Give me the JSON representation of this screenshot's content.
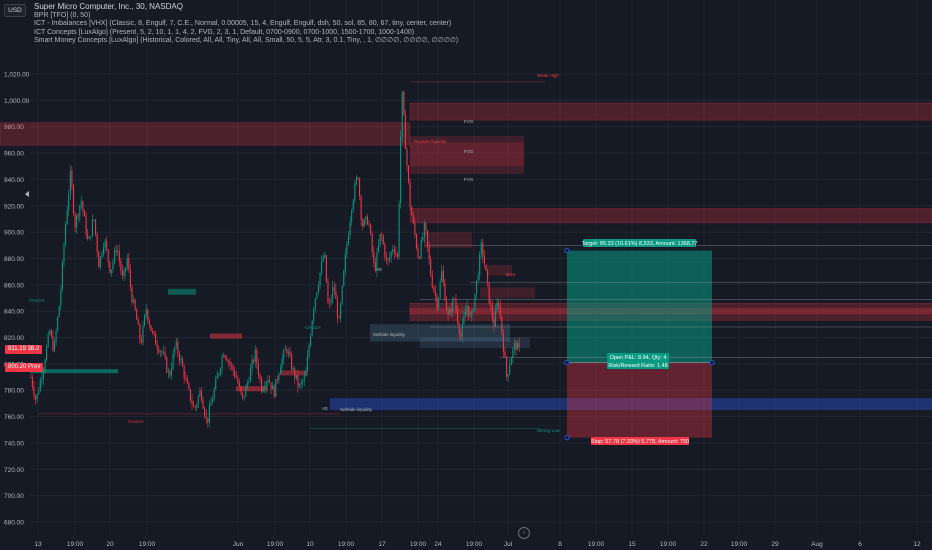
{
  "legend": {
    "title": "Super Micro Computer, Inc., 30, NASDAQ",
    "lines": [
      "BPR [TFO] (0, 50)",
      "ICT - Imbalances [VHX] (Classic, 8, Engulf, 7, C.E., Normal, 0.00005, 15, 4, Engulf, Engulf, dsh, 50, sol, 85, 80, 67, tiny, center, center)",
      "ICT Concepts [LuxAlgo] (Present, 5, 2, 10, 1, 1, 4, 2, FVG, 2, 3, 1, Default, 0700-0900, 0700-1000, 1500-1700, 1000-1400)",
      "Smart Money Concepts [LuxAlgo] (Historical, Colored, All, All, Tiny, All, All, Small, 50, 5, 5, Atr, 3, 0.1, Tiny, , 1, ∅∅∅∅, ∅∅∅∅, ∅∅∅∅)"
    ]
  },
  "currency": "USD",
  "left_price_tags": [
    {
      "text": "811.19",
      "sub": "38.2",
      "price": 808,
      "color": "#f23645"
    },
    {
      "text": "800.20",
      "sub": "Prev",
      "price": 796,
      "color": "#f23645"
    }
  ],
  "positions": {
    "target_label": "Target: 85.33 (10.61%) 8,533, Amount: 1368.77",
    "open_label": "Open P&L: 8.94, Qty: 4",
    "ratio_label": "Risk/Reward Ratio: 1.48",
    "stop_label": "Stop: 57.78 (7.33%) 5,778, Amount: 750"
  },
  "annotations": {
    "choch_1": "CHoCH",
    "choch_2": "CHoCH",
    "choch_3": "CHoCH",
    "sellside_1": "Sellside liquidity",
    "sellside_2": "Sellside liquidity",
    "buyside": "Buyside liquidity",
    "fvg": "FVG",
    "ve": "VE",
    "bos": "BOS",
    "weak_high": "Weak High",
    "strong_low": "Strong Low"
  },
  "chart_data": {
    "type": "candlestick",
    "ylim": [
      670,
      1050
    ],
    "y_ticks": [
      680,
      700,
      720,
      740,
      760,
      780,
      800,
      820,
      840,
      860,
      880,
      900,
      920,
      940,
      960,
      980,
      1000,
      1020
    ],
    "y_tick_labels": [
      "680.00",
      "700.00",
      "720.00",
      "740.00",
      "760.00",
      "780.00",
      "800.00",
      "820.00",
      "840.00",
      "860.00",
      "880.00",
      "900.00",
      "920.00",
      "940.00",
      "960.00",
      "980.00",
      "1,000.00",
      "1,020.00"
    ],
    "x_tick_labels": [
      "13",
      "19:00",
      "20",
      "19:00",
      "Jun",
      "19:00",
      "10",
      "19:00",
      "17",
      "19:00",
      "24",
      "19:00",
      "Jul",
      "8",
      "19:00",
      "15",
      "19:00",
      "22",
      "19:00",
      "29",
      "Aug",
      "6",
      "12"
    ],
    "path_points": [
      [
        0,
        790
      ],
      [
        5,
        772
      ],
      [
        12,
        798
      ],
      [
        18,
        825
      ],
      [
        22,
        810
      ],
      [
        28,
        850
      ],
      [
        33,
        905
      ],
      [
        38,
        945
      ],
      [
        42,
        905
      ],
      [
        48,
        925
      ],
      [
        55,
        890
      ],
      [
        60,
        912
      ],
      [
        65,
        875
      ],
      [
        70,
        895
      ],
      [
        76,
        870
      ],
      [
        82,
        890
      ],
      [
        88,
        862
      ],
      [
        92,
        880
      ],
      [
        96,
        852
      ],
      [
        100,
        838
      ],
      [
        105,
        815
      ],
      [
        110,
        842
      ],
      [
        115,
        825
      ],
      [
        120,
        815
      ],
      [
        126,
        808
      ],
      [
        132,
        790
      ],
      [
        138,
        815
      ],
      [
        144,
        800
      ],
      [
        150,
        780
      ],
      [
        156,
        765
      ],
      [
        162,
        780
      ],
      [
        168,
        755
      ],
      [
        172,
        770
      ],
      [
        178,
        790
      ],
      [
        184,
        810
      ],
      [
        190,
        800
      ],
      [
        196,
        790
      ],
      [
        202,
        772
      ],
      [
        208,
        790
      ],
      [
        214,
        808
      ],
      [
        220,
        782
      ],
      [
        226,
        790
      ],
      [
        232,
        778
      ],
      [
        238,
        800
      ],
      [
        244,
        812
      ],
      [
        250,
        795
      ],
      [
        256,
        782
      ],
      [
        262,
        790
      ],
      [
        266,
        818
      ],
      [
        270,
        845
      ],
      [
        275,
        865
      ],
      [
        280,
        885
      ],
      [
        284,
        840
      ],
      [
        289,
        860
      ],
      [
        294,
        830
      ],
      [
        300,
        880
      ],
      [
        306,
        920
      ],
      [
        312,
        945
      ],
      [
        316,
        905
      ],
      [
        322,
        910
      ],
      [
        328,
        870
      ],
      [
        334,
        900
      ],
      [
        340,
        875
      ],
      [
        346,
        890
      ],
      [
        350,
        880
      ],
      [
        354,
        1008
      ],
      [
        358,
        960
      ],
      [
        362,
        920
      ],
      [
        366,
        900
      ],
      [
        370,
        880
      ],
      [
        376,
        905
      ],
      [
        382,
        865
      ],
      [
        388,
        845
      ],
      [
        392,
        870
      ],
      [
        398,
        835
      ],
      [
        404,
        850
      ],
      [
        410,
        820
      ],
      [
        416,
        845
      ],
      [
        420,
        832
      ],
      [
        425,
        860
      ],
      [
        430,
        890
      ],
      [
        434,
        870
      ],
      [
        438,
        845
      ],
      [
        442,
        830
      ],
      [
        446,
        850
      ],
      [
        450,
        820
      ],
      [
        454,
        790
      ],
      [
        458,
        805
      ],
      [
        462,
        815
      ],
      [
        466,
        810
      ]
    ],
    "candle_count": 310,
    "zones_red": [
      {
        "from": 0,
        "to": 410,
        "top": 983,
        "bottom": 966
      },
      {
        "from": 410,
        "to": 932,
        "top": 998,
        "bottom": 985
      },
      {
        "from": 410,
        "to": 932,
        "top": 918,
        "bottom": 907
      },
      {
        "from": 410,
        "to": 932,
        "top": 846,
        "bottom": 838
      },
      {
        "from": 410,
        "to": 932,
        "top": 842,
        "bottom": 833
      }
    ],
    "position": {
      "entry": 801,
      "target": 886,
      "stop": 744,
      "x_start": 567,
      "x_end": 712
    }
  }
}
